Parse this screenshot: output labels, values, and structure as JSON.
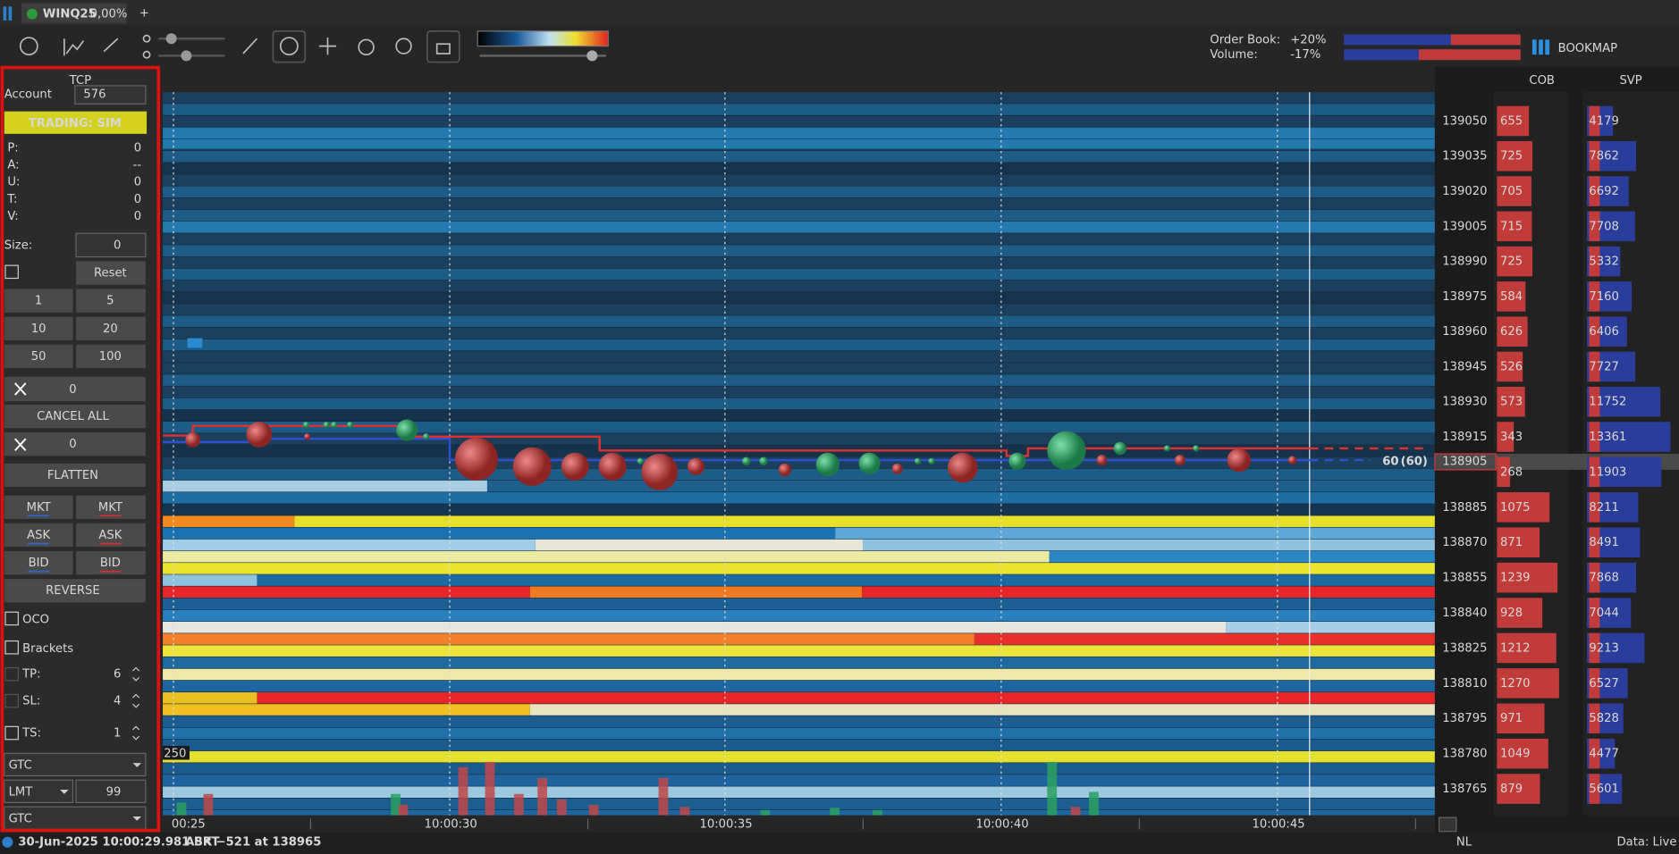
{
  "tab": {
    "symbol": "WINQ25",
    "change": "0,00%"
  },
  "toolbar": {
    "order_book_label": "Order Book:",
    "order_book_value": "+20%",
    "volume_label": "Volume:",
    "volume_value": "-17%",
    "brand": "BOOKMAP"
  },
  "panel": {
    "title": "TCP",
    "account_label": "Account",
    "account": "576",
    "mode": "TRADING: SIM",
    "stats": [
      {
        "label": "P:",
        "value": "0"
      },
      {
        "label": "A:",
        "value": "--"
      },
      {
        "label": "U:",
        "value": "0"
      },
      {
        "label": "T:",
        "value": "0"
      },
      {
        "label": "V:",
        "value": "0"
      }
    ],
    "size_label": "Size:",
    "size": "0",
    "reset": "Reset",
    "quantities": [
      "1",
      "5",
      "10",
      "20",
      "50",
      "100"
    ],
    "buy_qty": "0",
    "cancel_all": "CANCEL ALL",
    "sell_qty": "0",
    "flatten": "FLATTEN",
    "order_buttons": [
      "MKT",
      "MKT",
      "ASK",
      "ASK",
      "BID",
      "BID"
    ],
    "reverse": "REVERSE",
    "oco": "OCO",
    "brackets": "Brackets",
    "tp_label": "TP:",
    "tp": "6",
    "sl_label": "SL:",
    "sl": "4",
    "ts_label": "TS:",
    "ts": "1",
    "duration": "GTC",
    "order_type": "LMT",
    "limit_offset": "99",
    "duration2": "GTC"
  },
  "chart": {
    "time_labels": [
      "00:25",
      "10:00:30",
      "10:00:35",
      "10:00:40",
      "10:00:45"
    ],
    "last_trade": "60",
    "last_trade_total": "(60)",
    "volume_scale": "250"
  },
  "ladder": {
    "headers": [
      "COB",
      "SVP"
    ],
    "rows": [
      {
        "price": 139050,
        "cob": 655,
        "svp": 4179
      },
      {
        "price": 139035,
        "cob": 725,
        "svp": 7862
      },
      {
        "price": 139020,
        "cob": 705,
        "svp": 6692
      },
      {
        "price": 139005,
        "cob": 715,
        "svp": 7708
      },
      {
        "price": 138990,
        "cob": 725,
        "svp": 5332
      },
      {
        "price": 138975,
        "cob": 584,
        "svp": 7160
      },
      {
        "price": 138960,
        "cob": 626,
        "svp": 6406
      },
      {
        "price": 138945,
        "cob": 526,
        "svp": 7727
      },
      {
        "price": 138930,
        "cob": 573,
        "svp": 11752
      },
      {
        "price": 138915,
        "cob": 343,
        "svp": 13361
      },
      {
        "price": 138905,
        "cob": 268,
        "svp": 11903
      },
      {
        "price": 138885,
        "cob": 1075,
        "svp": 8211
      },
      {
        "price": 138870,
        "cob": 871,
        "svp": 8491
      },
      {
        "price": 138855,
        "cob": 1239,
        "svp": 7868
      },
      {
        "price": 138840,
        "cob": 928,
        "svp": 7044
      },
      {
        "price": 138825,
        "cob": 1212,
        "svp": 9213
      },
      {
        "price": 138810,
        "cob": 1270,
        "svp": 6527
      },
      {
        "price": 138795,
        "cob": 971,
        "svp": 5828
      },
      {
        "price": 138780,
        "cob": 1049,
        "svp": 4477
      },
      {
        "price": 138765,
        "cob": 879,
        "svp": 5601
      }
    ]
  },
  "status": {
    "timestamp": "30-Jun-2025 10:00:29.981 BRT",
    "last_event": "ASK −521 at 138965",
    "nl": "NL",
    "data_mode": "Data: Live"
  }
}
